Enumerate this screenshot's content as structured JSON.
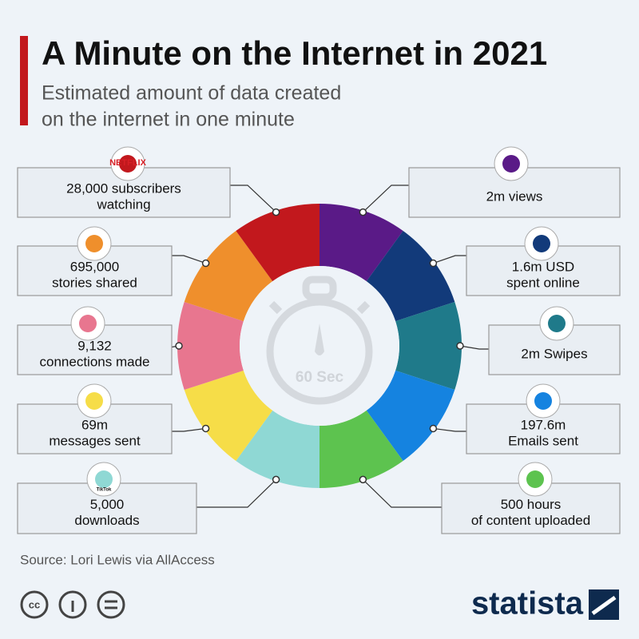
{
  "header": {
    "title": "A Minute on the Internet in 2021",
    "subtitle": [
      "Estimated amount of data created",
      "on the internet in one minute"
    ]
  },
  "center_label": "60 Sec",
  "items": [
    {
      "label": [
        "2m views"
      ],
      "color": "#5a1a87"
    },
    {
      "label": [
        "1.6m USD",
        "spent online"
      ],
      "color": "#123a7a"
    },
    {
      "label": [
        "2m Swipes"
      ],
      "color": "#1f7a8a"
    },
    {
      "label": [
        "197.6m",
        "Emails sent"
      ],
      "color": "#1583e0"
    },
    {
      "label": [
        "500 hours",
        "of content uploaded"
      ],
      "color": "#5dc34f"
    },
    {
      "label": [
        "5,000",
        "downloads"
      ],
      "logo": "TikTok",
      "color": "#8fd8d4"
    },
    {
      "label": [
        "69m",
        "messages sent"
      ],
      "color": "#f6dd48"
    },
    {
      "label": [
        "9,132",
        "connections made"
      ],
      "color": "#e8768f"
    },
    {
      "label": [
        "695,000",
        "stories shared"
      ],
      "color": "#ef8f2c"
    },
    {
      "label": [
        "28,000 subscribers",
        "watching"
      ],
      "logo": "NETFLIX",
      "color": "#c2181d"
    }
  ],
  "footer": {
    "source": "Source: Lori Lewis via AllAccess",
    "brand": "statista"
  }
}
